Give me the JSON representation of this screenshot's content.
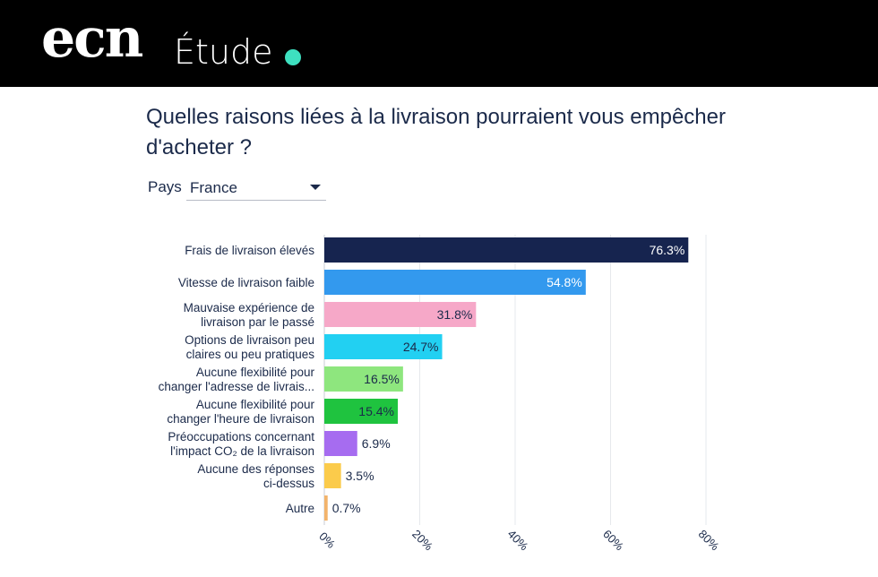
{
  "header": {
    "logo": "ecn",
    "section": "Étude",
    "accent_color": "#3ee0c0"
  },
  "question": "Quelles raisons liées à la livraison pourraient vous empêcher d'acheter ?",
  "filter": {
    "label": "Pays",
    "value": "France"
  },
  "chart_data": {
    "type": "bar",
    "orientation": "horizontal",
    "title": "Quelles raisons liées à la livraison pourraient vous empêcher d'acheter ?",
    "categories": [
      [
        "Frais de livraison élevés"
      ],
      [
        "Vitesse de livraison faible"
      ],
      [
        "Mauvaise expérience de",
        "livraison par le passé"
      ],
      [
        "Options de livraison peu",
        "claires ou peu pratiques"
      ],
      [
        "Aucune flexibilité pour",
        "changer l'adresse de livrais..."
      ],
      [
        "Aucune flexibilité pour",
        "changer l'heure de livraison"
      ],
      [
        "Préoccupations concernant",
        "l'impact CO₂ de la livraison"
      ],
      [
        "Aucune des réponses",
        "ci-dessus"
      ],
      [
        "Autre"
      ]
    ],
    "values": [
      76.3,
      54.8,
      31.8,
      24.7,
      16.5,
      15.4,
      6.9,
      3.5,
      0.7
    ],
    "value_labels": [
      "76.3%",
      "54.8%",
      "31.8%",
      "24.7%",
      "16.5%",
      "15.4%",
      "6.9%",
      "3.5%",
      "0.7%"
    ],
    "colors": [
      "#16244f",
      "#3399ee",
      "#f6a8c8",
      "#22d0f2",
      "#8ee67e",
      "#1fc33f",
      "#a66cf0",
      "#fbcb4b",
      "#f2b36b"
    ],
    "label_colors": [
      "#ffffff",
      "#ffffff",
      "#1b2a4a",
      "#1b2a4a",
      "#1b2a4a",
      "#1b2a4a",
      "#1b2a4a",
      "#1b2a4a",
      "#1b2a4a"
    ],
    "xlim": [
      0,
      80
    ],
    "xticks": [
      0,
      20,
      40,
      60,
      80
    ],
    "xtick_labels": [
      "0%",
      "20%",
      "40%",
      "60%",
      "80%"
    ],
    "grid": true
  }
}
